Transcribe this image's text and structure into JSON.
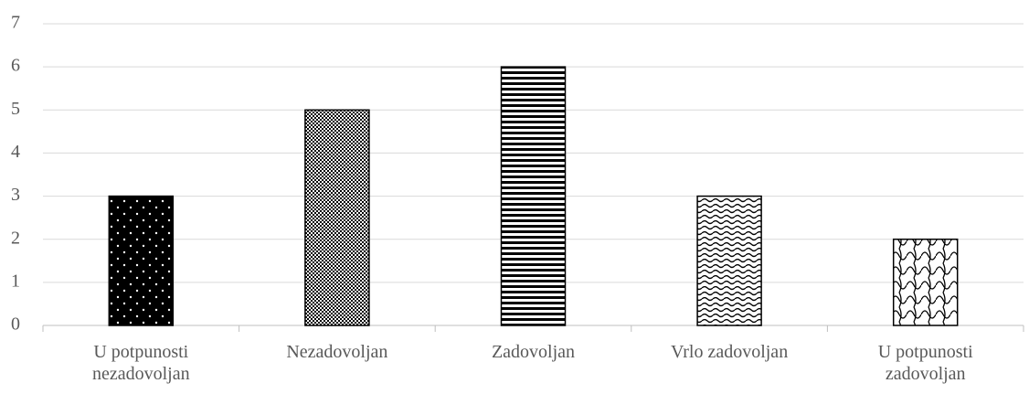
{
  "chart_data": {
    "type": "bar",
    "categories": [
      "U potpunosti nezadovoljan",
      "Nezadovoljan",
      "Zadovoljan",
      "Vrlo zadovoljan",
      "U potpunosti zadovoljan"
    ],
    "values": [
      3,
      5,
      6,
      3,
      2
    ],
    "ylim": [
      0,
      7
    ],
    "yticks": [
      0,
      1,
      2,
      3,
      4,
      5,
      6,
      7
    ],
    "grid": true
  }
}
